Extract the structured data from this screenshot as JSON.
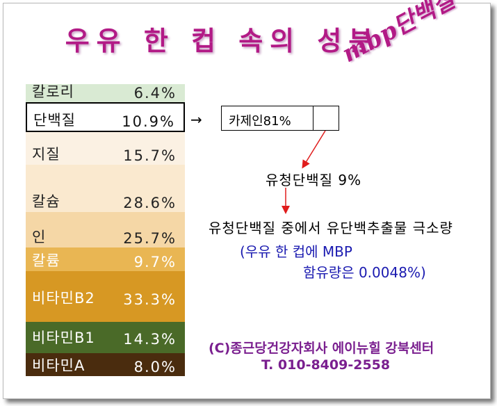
{
  "title": "우유 한 컵 속의 성분",
  "stamp": "mbp단백질",
  "components": [
    {
      "name": "칼로리",
      "pct": "6.4%",
      "color": "#d9ead3",
      "text_color": "#222222"
    },
    {
      "name": "단백질",
      "pct": "10.9%",
      "color": "#ffffff",
      "text_color": "#111111"
    },
    {
      "name": "지질",
      "pct": "15.7%",
      "color": "#fbf1e3",
      "text_color": "#222222"
    },
    {
      "name": "칼슘",
      "pct": "28.6%",
      "color": "#fae9cf",
      "text_color": "#222222"
    },
    {
      "name": "인",
      "pct": "25.7%",
      "color": "#f5d7a6",
      "text_color": "#222222"
    },
    {
      "name": "칼륨",
      "pct": "9.7%",
      "color": "#e9b653",
      "text_color": "#ffffff"
    },
    {
      "name": "비타민B2",
      "pct": "33.3%",
      "color": "#d79823",
      "text_color": "#ffffff"
    },
    {
      "name": "비타민B1",
      "pct": "14.3%",
      "color": "#4a6a28",
      "text_color": "#ffffff"
    },
    {
      "name": "비타민A",
      "pct": "8.0%",
      "color": "#4a2c0e",
      "text_color": "#ffffff"
    }
  ],
  "casein_box": "카제인81%",
  "arrow_right": "→",
  "whey_protein": "유청단백질 9%",
  "note_line": "유청단백질 중에서 유단백추출물 극소량",
  "mbp_line1": "(우유 한 컵에 MBP",
  "mbp_line2": "함유량은 0.0048%)",
  "credit_line1": "(C)종근당건강자회사 에이뉴힐 강북센터",
  "credit_line2": "T. 010-8409-2558",
  "colors": {
    "title": "#b21a86",
    "arrow": "#e01c1c",
    "mbp_text": "#1a1ab0",
    "credit_text": "#7a1f8f"
  }
}
